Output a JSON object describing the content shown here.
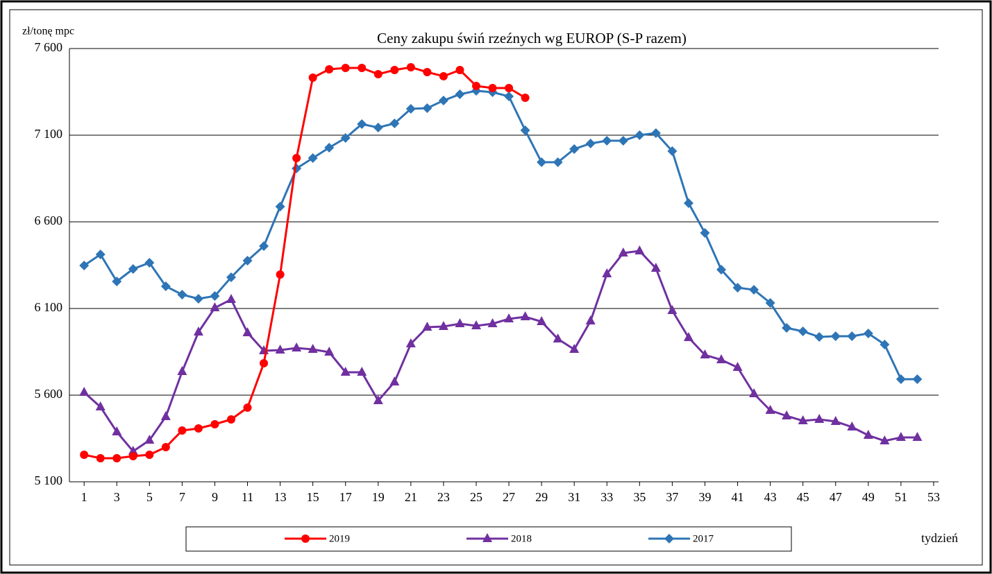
{
  "chart_data": {
    "type": "line",
    "title": "Ceny zakupu świń rzeźnych wg EUROP (S-P razem)",
    "y_label": "zł/tonę mpc",
    "x_label": "tydzień",
    "x": [
      1,
      2,
      3,
      4,
      5,
      6,
      7,
      8,
      9,
      10,
      11,
      12,
      13,
      14,
      15,
      16,
      17,
      18,
      19,
      20,
      21,
      22,
      23,
      24,
      25,
      26,
      27,
      28,
      29,
      30,
      31,
      32,
      33,
      34,
      35,
      36,
      37,
      38,
      39,
      40,
      41,
      42,
      43,
      44,
      45,
      46,
      47,
      48,
      49,
      50,
      51,
      52
    ],
    "xlim": [
      0.1,
      53.3
    ],
    "xticks": [
      1,
      3,
      5,
      7,
      9,
      11,
      13,
      15,
      17,
      19,
      21,
      23,
      25,
      27,
      29,
      31,
      33,
      35,
      37,
      39,
      41,
      43,
      45,
      47,
      49,
      51,
      53
    ],
    "ylim": [
      5100,
      7600
    ],
    "yticks": [
      {
        "value": 5100,
        "label": "5 100"
      },
      {
        "value": 5600,
        "label": "5 600"
      },
      {
        "value": 6100,
        "label": "6 100"
      },
      {
        "value": 6600,
        "label": "6 600"
      },
      {
        "value": 7100,
        "label": "7 100"
      },
      {
        "value": 7600,
        "label": "7 600"
      }
    ],
    "grid": true,
    "series": [
      {
        "name": "2019",
        "color": "#ff0000",
        "marker": "circle",
        "values": [
          5256,
          5236,
          5236,
          5248,
          5256,
          5300,
          5396,
          5408,
          5432,
          5460,
          5528,
          5784,
          6296,
          6968,
          7432,
          7480,
          7488,
          7488,
          7452,
          7476,
          7492,
          7464,
          7440,
          7476,
          7384,
          7372,
          7372,
          7316,
          null,
          null,
          null,
          null,
          null,
          null,
          null,
          null,
          null,
          null,
          null,
          null,
          null,
          null,
          null,
          null,
          null,
          null,
          null,
          null,
          null,
          null,
          null,
          null
        ]
      },
      {
        "name": "2018",
        "color": "#7030a0",
        "marker": "triangle",
        "values": [
          5616,
          5532,
          5388,
          5276,
          5340,
          5476,
          5736,
          5964,
          6104,
          6152,
          5960,
          5856,
          5860,
          5872,
          5864,
          5848,
          5732,
          5732,
          5568,
          5676,
          5896,
          5992,
          5996,
          6012,
          6000,
          6012,
          6040,
          6052,
          6024,
          5924,
          5864,
          6028,
          6300,
          6420,
          6432,
          6332,
          6088,
          5932,
          5832,
          5804,
          5760,
          5608,
          5512,
          5480,
          5452,
          5460,
          5448,
          5416,
          5368,
          5336,
          5356,
          5356
        ]
      },
      {
        "name": "2017",
        "color": "#2e75b6",
        "marker": "diamond",
        "values": [
          6348,
          6412,
          6256,
          6328,
          6364,
          6228,
          6180,
          6156,
          6172,
          6280,
          6376,
          6460,
          6688,
          6908,
          6968,
          7028,
          7084,
          7164,
          7144,
          7168,
          7252,
          7256,
          7300,
          7336,
          7356,
          7348,
          7324,
          7128,
          6944,
          6944,
          7020,
          7052,
          7068,
          7068,
          7100,
          7112,
          7008,
          6708,
          6536,
          6324,
          6220,
          6208,
          6132,
          5988,
          5968,
          5936,
          5940,
          5940,
          5956,
          5892,
          5692,
          5692
        ]
      }
    ]
  }
}
